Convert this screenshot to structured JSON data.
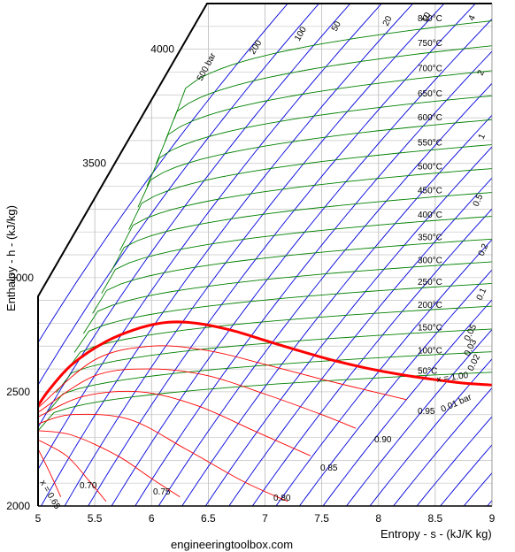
{
  "chart_data": {
    "type": "line",
    "title": "",
    "xlabel": "Entropy - s - (kJ/K kg)",
    "ylabel": "Enthalpy - h - (kJ/kg)",
    "xlim": [
      5,
      9
    ],
    "ylim": [
      2000,
      4200
    ],
    "x_ticks": [
      "5",
      "5.5",
      "6",
      "6.5",
      "7",
      "7.5",
      "8",
      "8.5",
      "9"
    ],
    "y_ticks": [
      "2000",
      "2500",
      "3000",
      "3500",
      "4000"
    ],
    "grid": true,
    "saturation_line": {
      "name": "x = 1.00",
      "color": "#ff0000",
      "points": [
        [
          5.0,
          2440
        ],
        [
          5.1,
          2510
        ],
        [
          5.3,
          2620
        ],
        [
          5.6,
          2720
        ],
        [
          5.9,
          2780
        ],
        [
          6.15,
          2805
        ],
        [
          6.4,
          2800
        ],
        [
          6.7,
          2770
        ],
        [
          7.0,
          2725
        ],
        [
          7.3,
          2680
        ],
        [
          7.6,
          2638
        ],
        [
          7.9,
          2603
        ],
        [
          8.2,
          2575
        ],
        [
          8.5,
          2553
        ],
        [
          8.75,
          2538
        ],
        [
          9.0,
          2530
        ]
      ]
    },
    "quality_lines": [
      {
        "name": "0.95",
        "points": [
          [
            5.0,
            2430
          ],
          [
            5.5,
            2640
          ],
          [
            6.0,
            2700
          ],
          [
            6.5,
            2680
          ],
          [
            7.0,
            2620
          ],
          [
            7.5,
            2555
          ],
          [
            8.0,
            2495
          ],
          [
            8.25,
            2465
          ]
        ]
      },
      {
        "name": "0.90",
        "points": [
          [
            5.0,
            2410
          ],
          [
            5.5,
            2570
          ],
          [
            6.0,
            2600
          ],
          [
            6.5,
            2570
          ],
          [
            7.0,
            2490
          ],
          [
            7.5,
            2400
          ],
          [
            7.8,
            2340
          ]
        ]
      },
      {
        "name": "0.85",
        "points": [
          [
            5.0,
            2390
          ],
          [
            5.4,
            2480
          ],
          [
            5.9,
            2500
          ],
          [
            6.4,
            2440
          ],
          [
            6.9,
            2330
          ],
          [
            7.4,
            2220
          ]
        ]
      },
      {
        "name": "0.80",
        "points": [
          [
            5.0,
            2360
          ],
          [
            5.3,
            2400
          ],
          [
            5.8,
            2380
          ],
          [
            6.3,
            2250
          ],
          [
            6.8,
            2110
          ],
          [
            7.2,
            2020
          ]
        ]
      },
      {
        "name": "0.75",
        "points": [
          [
            5.0,
            2330
          ],
          [
            5.3,
            2310
          ],
          [
            5.7,
            2220
          ],
          [
            6.0,
            2120
          ],
          [
            6.25,
            2040
          ]
        ]
      },
      {
        "name": "0.70",
        "points": [
          [
            5.0,
            2290
          ],
          [
            5.25,
            2220
          ],
          [
            5.45,
            2110
          ],
          [
            5.6,
            2020
          ]
        ]
      },
      {
        "name": "x = 0.65",
        "points": [
          [
            5.0,
            2250
          ],
          [
            5.1,
            2150
          ],
          [
            5.2,
            2040
          ]
        ]
      }
    ],
    "temperature_lines": {
      "color": "#008000",
      "series": [
        {
          "name": "50°C",
          "h": 2590
        },
        {
          "name": "100°C",
          "h": 2680
        },
        {
          "name": "150°C",
          "h": 2780
        },
        {
          "name": "200°C",
          "h": 2880
        },
        {
          "name": "250°C",
          "h": 2980
        },
        {
          "name": "300°C",
          "h": 3075
        },
        {
          "name": "350°C",
          "h": 3175
        },
        {
          "name": "400°C",
          "h": 3275
        },
        {
          "name": "450°C",
          "h": 3380
        },
        {
          "name": "500°C",
          "h": 3485
        },
        {
          "name": "550°C",
          "h": 3590
        },
        {
          "name": "600°C",
          "h": 3700
        },
        {
          "name": "650°C",
          "h": 3805
        },
        {
          "name": "700°C",
          "h": 3915
        },
        {
          "name": "750°C",
          "h": 4025
        },
        {
          "name": "800°C",
          "h": 4135
        }
      ]
    },
    "pressure_lines": {
      "color": "#0000cc",
      "labeled": [
        "500 bar",
        "200",
        "100",
        "50",
        "20",
        "10",
        "4",
        "2",
        "1",
        "0.5",
        "0.2",
        "0.1",
        "0.05",
        "0.03",
        "0.02",
        "0.01 bar"
      ]
    },
    "labels": {
      "x_one": "x = 1.00",
      "footer": "engineeringtoolbox.com"
    }
  }
}
